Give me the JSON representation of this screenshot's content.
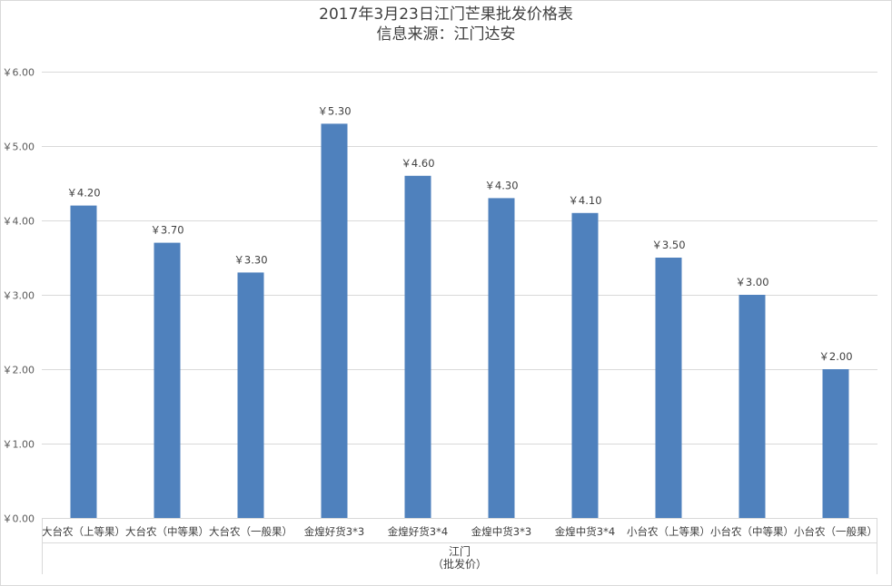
{
  "chart_data": {
    "type": "bar",
    "title": "2017年3月23日江门芒果批发价格表",
    "subtitle": "信息来源：江门达安",
    "categories": [
      "大台农（上等果）",
      "大台农（中等果）",
      "大台农（一般果）",
      "金煌好货3*3",
      "金煌好货3*4",
      "金煌中货3*3",
      "金煌中货3*4",
      "小台农（上等果）",
      "小台农（中等果）",
      "小台农（一般果）"
    ],
    "values": [
      4.2,
      3.7,
      3.3,
      5.3,
      4.6,
      4.3,
      4.1,
      3.5,
      3.0,
      2.0
    ],
    "data_labels": [
      "￥4.20",
      "￥3.70",
      "￥3.30",
      "￥5.30",
      "￥4.60",
      "￥4.30",
      "￥4.10",
      "￥3.50",
      "￥3.00",
      "￥2.00"
    ],
    "y_ticks": [
      "￥0.00",
      "￥1.00",
      "￥2.00",
      "￥3.00",
      "￥4.00",
      "￥5.00",
      "￥6.00"
    ],
    "ylim": [
      0,
      6
    ],
    "x_group_label": "江门",
    "x_group_sublabel": "（批发价）",
    "grid": true,
    "legend": "none",
    "bar_color": "#4f81bd",
    "grid_color": "#d9d9d9"
  }
}
